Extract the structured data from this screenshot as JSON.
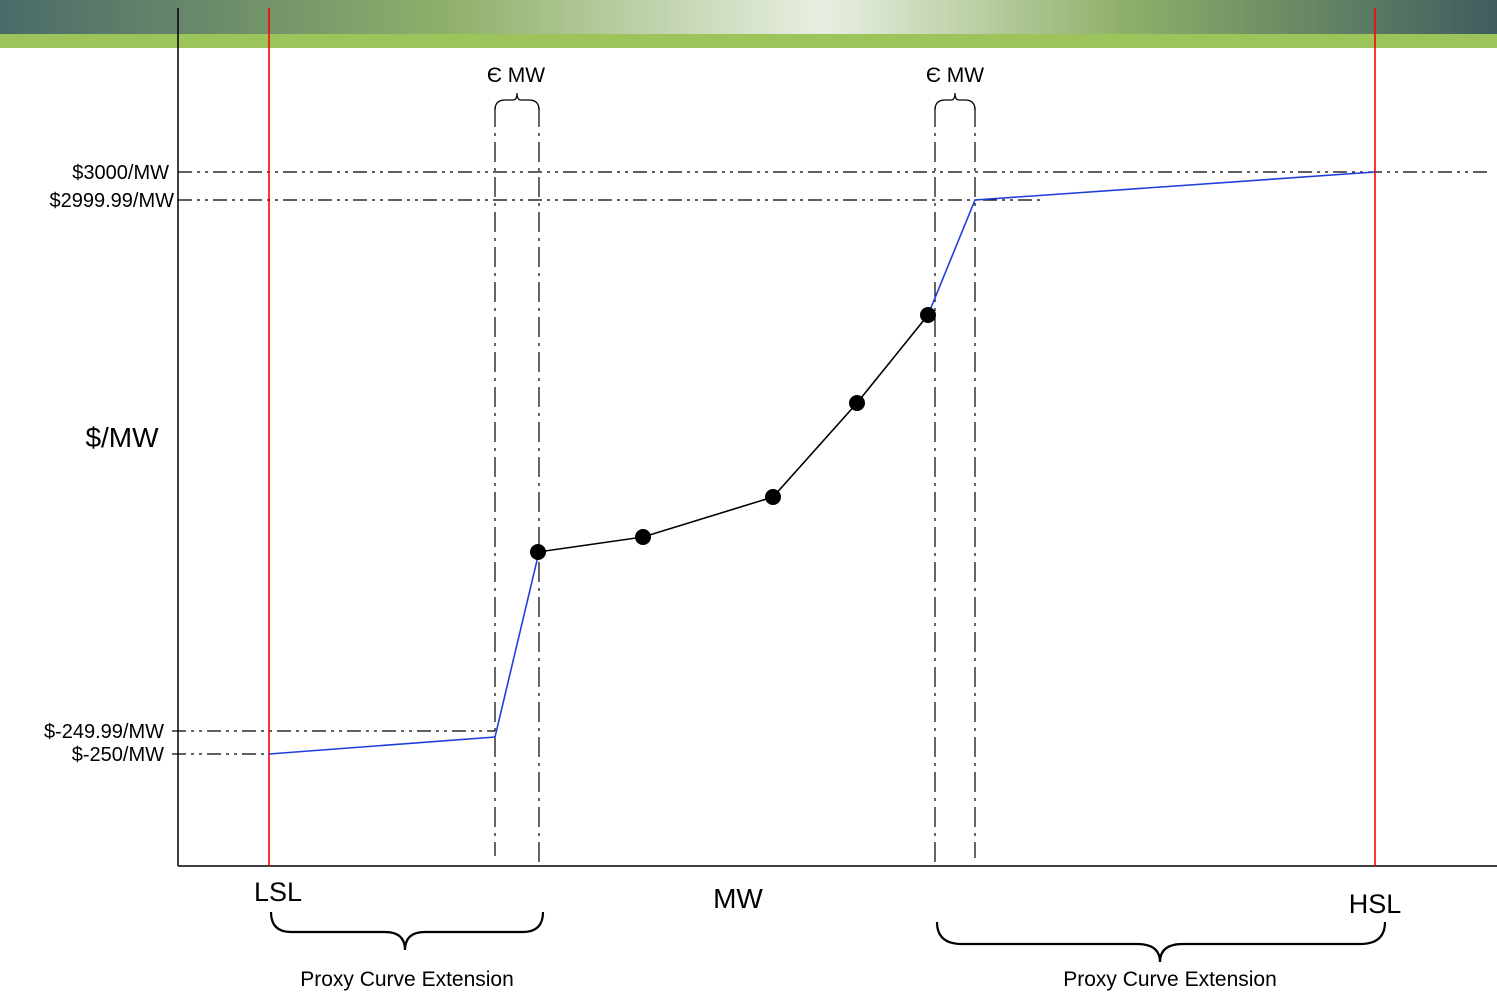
{
  "colors": {
    "banner_dark": "#3d5a5c",
    "banner_green": "#9dc45a",
    "limit_line": "#ff0000",
    "proxy_segment": "#1f3fdc",
    "offer_curve": "#000000"
  },
  "y_axis_label": "$/MW",
  "x_axis_label": "MW",
  "price_levels": {
    "cap_high": "$3000/MW",
    "cap_high_minus": "$2999.99/MW",
    "floor_plus": "$-249.99/MW",
    "floor": "$-250/MW"
  },
  "limits": {
    "low": "LSL",
    "high": "HSL"
  },
  "epsilon_labels": {
    "left": "Є MW",
    "right": "Є MW"
  },
  "extension_labels": {
    "left": "Proxy Curve Extension",
    "right": "Proxy Curve Extension"
  }
}
